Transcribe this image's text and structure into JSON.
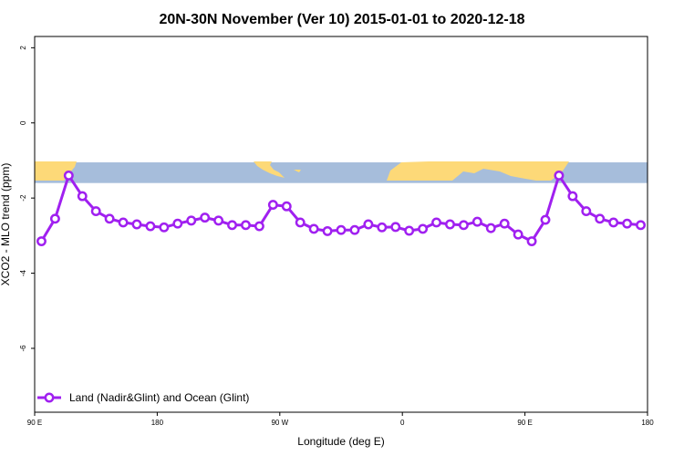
{
  "chart_data": {
    "type": "line",
    "title": "20N-30N November (Ver 10)   2015-01-01 to 2020-12-18",
    "xlabel": "Longitude (deg E)",
    "ylabel": "XCO2 - MLO trend (ppm)",
    "xlim": [
      90,
      540
    ],
    "ylim": [
      -7.7,
      2.3
    ],
    "x_ticks": [
      {
        "value": 90,
        "label": "90 E"
      },
      {
        "value": 180,
        "label": "180"
      },
      {
        "value": 270,
        "label": "90 W"
      },
      {
        "value": 360,
        "label": "0"
      },
      {
        "value": 450,
        "label": "90 E"
      },
      {
        "value": 540,
        "label": "180"
      }
    ],
    "y_ticks": [
      {
        "value": 2,
        "label": "2"
      },
      {
        "value": 0,
        "label": "0"
      },
      {
        "value": -2,
        "label": "-2"
      },
      {
        "value": -4,
        "label": "-4"
      },
      {
        "value": -6,
        "label": "-6"
      }
    ],
    "map_strip": {
      "y_top": -1.05,
      "y_bottom": -1.6,
      "ocean_color": "#A6BDDB",
      "land_color": "#FDD978"
    },
    "grid": false,
    "legend_position": "bottom-left",
    "series": [
      {
        "name": "Land (Nadir&Glint) and Ocean (Glint)",
        "color": "#A020F0",
        "x": [
          95,
          105,
          115,
          125,
          135,
          145,
          155,
          165,
          175,
          185,
          195,
          205,
          215,
          225,
          235,
          245,
          255,
          265,
          275,
          285,
          295,
          305,
          315,
          325,
          335,
          345,
          355,
          365,
          375,
          385,
          395,
          405,
          415,
          425,
          435,
          445,
          455,
          465,
          475,
          485,
          495,
          505,
          515,
          525,
          535
        ],
        "y": [
          -3.15,
          -2.55,
          -1.4,
          -1.95,
          -2.35,
          -2.55,
          -2.65,
          -2.7,
          -2.75,
          -2.78,
          -2.68,
          -2.6,
          -2.52,
          -2.6,
          -2.72,
          -2.72,
          -2.75,
          -2.18,
          -2.22,
          -2.65,
          -2.82,
          -2.88,
          -2.85,
          -2.85,
          -2.7,
          -2.78,
          -2.77,
          -2.87,
          -2.82,
          -2.65,
          -2.7,
          -2.72,
          -2.63,
          -2.8,
          -2.68,
          -2.97,
          -3.15,
          -2.58,
          -1.4,
          -1.95,
          -2.35,
          -2.55,
          -2.65,
          -2.68,
          -2.72
        ]
      }
    ]
  }
}
